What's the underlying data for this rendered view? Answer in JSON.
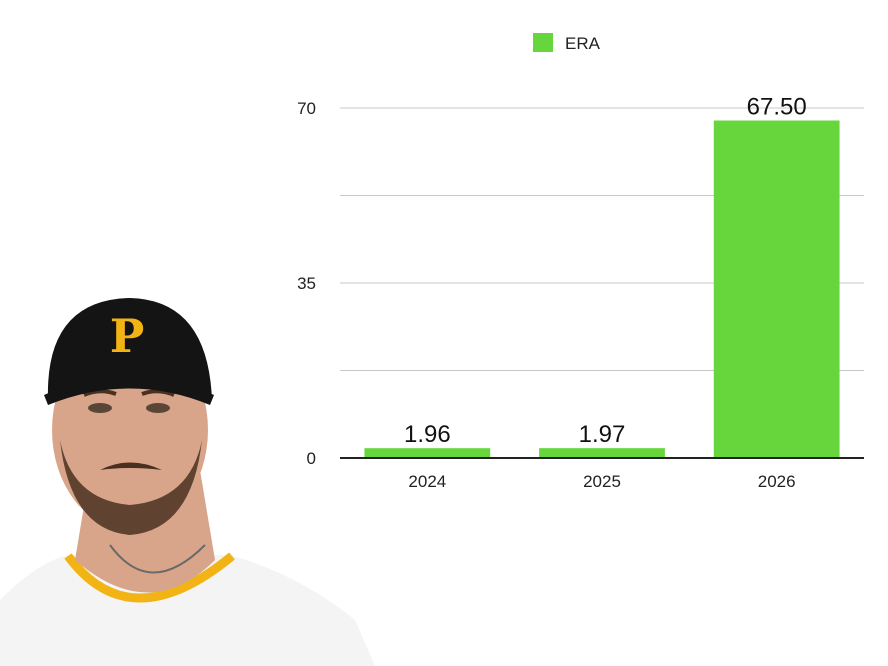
{
  "colors": {
    "bar": "#66d63c",
    "grid": "#c8c8c8",
    "axis": "#222222",
    "cap": "#141414",
    "cap_logo": "#f2b315",
    "jersey": "#f4f4f4",
    "trim": "#f2b315",
    "skin": "#d9a58a",
    "beard": "#4a3020"
  },
  "photo": {
    "cap_letter": "P",
    "icon": "player-headshot"
  },
  "chart_data": {
    "type": "bar",
    "title": "",
    "xlabel": "",
    "ylabel": "",
    "categories": [
      "2024",
      "2025",
      "2026"
    ],
    "series": [
      {
        "name": "ERA",
        "values": [
          1.96,
          1.97,
          67.5
        ],
        "labels": [
          "1.96",
          "1.97",
          "67.50"
        ]
      }
    ],
    "ylim": [
      0,
      70
    ],
    "yticks": [
      0,
      35,
      70
    ],
    "grid": true,
    "legend": "top-center"
  }
}
